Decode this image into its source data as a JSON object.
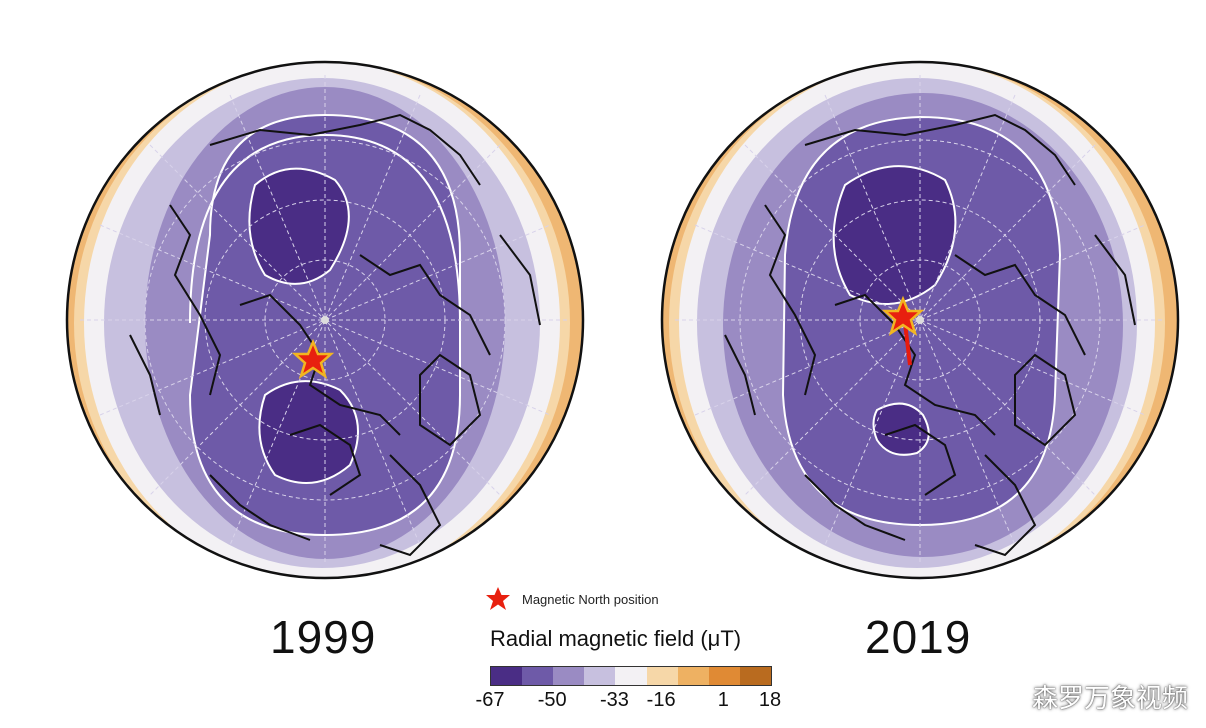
{
  "panels": [
    {
      "year": "1999"
    },
    {
      "year": "2019"
    }
  ],
  "legend": {
    "marker_label": "Magnetic North position",
    "colorbar_title": "Radial magnetic field (μT)",
    "ticks": [
      "-67",
      "-50",
      "-33",
      "-16",
      "1",
      "18"
    ],
    "colors": [
      "#4a2d85",
      "#6e5aa8",
      "#9a8bc3",
      "#c7c0df",
      "#f3f1f4",
      "#f6d7a8",
      "#eeb162",
      "#e08a34",
      "#b96b1f"
    ]
  },
  "watermark": "森罗万象视频"
}
